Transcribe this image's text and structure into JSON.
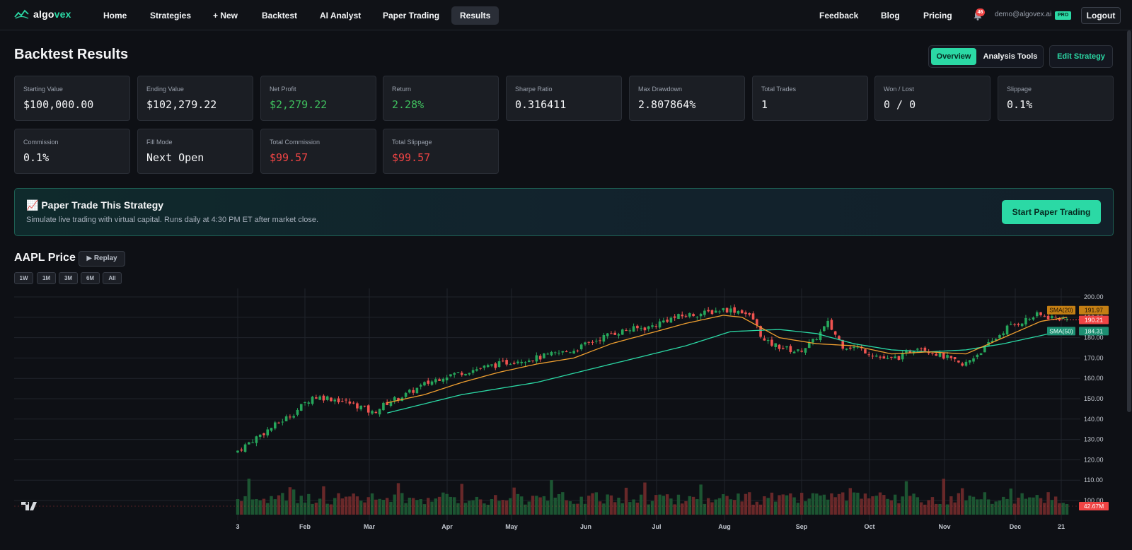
{
  "nav": {
    "logo_part1": "algo",
    "logo_part2": "vex",
    "links": [
      "Home",
      "Strategies",
      "+ New",
      "Backtest",
      "AI Analyst",
      "Paper Trading",
      "Results"
    ],
    "right_links": [
      "Feedback",
      "Blog",
      "Pricing"
    ],
    "notification_count": "46",
    "user_email": "demo@algovex.ai",
    "plan_badge": "PRO",
    "logout_label": "Logout"
  },
  "header": {
    "title": "Backtest Results",
    "tab_overview": "Overview",
    "tab_analysis": "Analysis Tools",
    "edit_label": "Edit Strategy"
  },
  "metrics": [
    {
      "label": "Starting Value",
      "value": "$100,000.00",
      "tone": "neutral"
    },
    {
      "label": "Ending Value",
      "value": "$102,279.22",
      "tone": "neutral"
    },
    {
      "label": "Net Profit",
      "value": "$2,279.22",
      "tone": "pos"
    },
    {
      "label": "Return",
      "value": "2.28%",
      "tone": "pos"
    },
    {
      "label": "Sharpe Ratio",
      "value": "0.316411",
      "tone": "neutral"
    },
    {
      "label": "Max Drawdown",
      "value": "2.807864%",
      "tone": "neutral"
    },
    {
      "label": "Total Trades",
      "value": "1",
      "tone": "neutral"
    },
    {
      "label": "Won / Lost",
      "value": "0 / 0",
      "tone": "neutral"
    },
    {
      "label": "Slippage",
      "value": "0.1%",
      "tone": "neutral"
    },
    {
      "label": "Commission",
      "value": "0.1%",
      "tone": "neutral"
    },
    {
      "label": "Fill Mode",
      "value": "Next Open",
      "tone": "neutral"
    },
    {
      "label": "Total Commission",
      "value": "$99.57",
      "tone": "neg"
    },
    {
      "label": "Total Slippage",
      "value": "$99.57",
      "tone": "neg"
    }
  ],
  "banner": {
    "title": "📈 Paper Trade This Strategy",
    "subtitle": "Simulate live trading with virtual capital. Runs daily at 4:30 PM ET after market close.",
    "button": "Start Paper Trading"
  },
  "chart_header": {
    "title": "AAPL Price",
    "replay_label": "▶ Replay",
    "ranges": [
      "1W",
      "1M",
      "3M",
      "6M",
      "All"
    ]
  },
  "colors": {
    "accent": "#2bd9a5",
    "up": "#26a65b",
    "down": "#ef5350",
    "sma20": "#f0a030",
    "sma50": "#2bd9a5"
  },
  "chart_data": {
    "type": "candlestick",
    "y_ticks": [
      "200.00",
      "190.00",
      "180.00",
      "170.00",
      "160.00",
      "150.00",
      "140.00",
      "130.00",
      "120.00",
      "110.00",
      "100.00"
    ],
    "ylim": [
      100,
      200
    ],
    "x_ticks": [
      "3",
      "Feb",
      "Mar",
      "Apr",
      "May",
      "Jun",
      "Jul",
      "Aug",
      "Sep",
      "Oct",
      "Nov",
      "Dec",
      "21"
    ],
    "close_path": [
      [
        0,
        124.5
      ],
      [
        5,
        131
      ],
      [
        10,
        137
      ],
      [
        15,
        143
      ],
      [
        20,
        151
      ],
      [
        24,
        150.5
      ],
      [
        28,
        149
      ],
      [
        33,
        146
      ],
      [
        36,
        143
      ],
      [
        40,
        148
      ],
      [
        45,
        152
      ],
      [
        50,
        157
      ],
      [
        55,
        161
      ],
      [
        60,
        163
      ],
      [
        65,
        165
      ],
      [
        70,
        167
      ],
      [
        75,
        169
      ],
      [
        80,
        170
      ],
      [
        85,
        172
      ],
      [
        90,
        174
      ],
      [
        95,
        178
      ],
      [
        100,
        182
      ],
      [
        105,
        184
      ],
      [
        110,
        185
      ],
      [
        115,
        189
      ],
      [
        120,
        191
      ],
      [
        125,
        192
      ],
      [
        130,
        194
      ],
      [
        135,
        193
      ],
      [
        138,
        189
      ],
      [
        141,
        178
      ],
      [
        146,
        175
      ],
      [
        150,
        173
      ],
      [
        154,
        178
      ],
      [
        158,
        187
      ],
      [
        162,
        176
      ],
      [
        166,
        175
      ],
      [
        170,
        172
      ],
      [
        174,
        169
      ],
      [
        178,
        171
      ],
      [
        182,
        176
      ],
      [
        186,
        173
      ],
      [
        190,
        170
      ],
      [
        194,
        166
      ],
      [
        198,
        172
      ],
      [
        202,
        178
      ],
      [
        206,
        185
      ],
      [
        210,
        188
      ],
      [
        214,
        191
      ],
      [
        218,
        190
      ],
      [
        222,
        189
      ]
    ],
    "sma20_path": [
      [
        40,
        148
      ],
      [
        50,
        152
      ],
      [
        60,
        158
      ],
      [
        70,
        163
      ],
      [
        80,
        167
      ],
      [
        90,
        170
      ],
      [
        100,
        177
      ],
      [
        110,
        182
      ],
      [
        120,
        187
      ],
      [
        130,
        191
      ],
      [
        135,
        190
      ],
      [
        145,
        180
      ],
      [
        155,
        177
      ],
      [
        165,
        176
      ],
      [
        175,
        172
      ],
      [
        185,
        173
      ],
      [
        195,
        172
      ],
      [
        205,
        180
      ],
      [
        215,
        188
      ],
      [
        222,
        190
      ]
    ],
    "sma50_path": [
      [
        40,
        143
      ],
      [
        60,
        152
      ],
      [
        80,
        158
      ],
      [
        100,
        167
      ],
      [
        120,
        176
      ],
      [
        132,
        183
      ],
      [
        145,
        184
      ],
      [
        155,
        182
      ],
      [
        165,
        177
      ],
      [
        175,
        174
      ],
      [
        185,
        173
      ],
      [
        195,
        174
      ],
      [
        205,
        177
      ],
      [
        215,
        181
      ],
      [
        222,
        184
      ]
    ],
    "sma20_label": "SMA(20)",
    "sma20_value": "191.97",
    "last_price": "190.21",
    "sma50_label": "SMA(50)",
    "sma50_value": "184.31",
    "volume_label": "42.67M"
  }
}
